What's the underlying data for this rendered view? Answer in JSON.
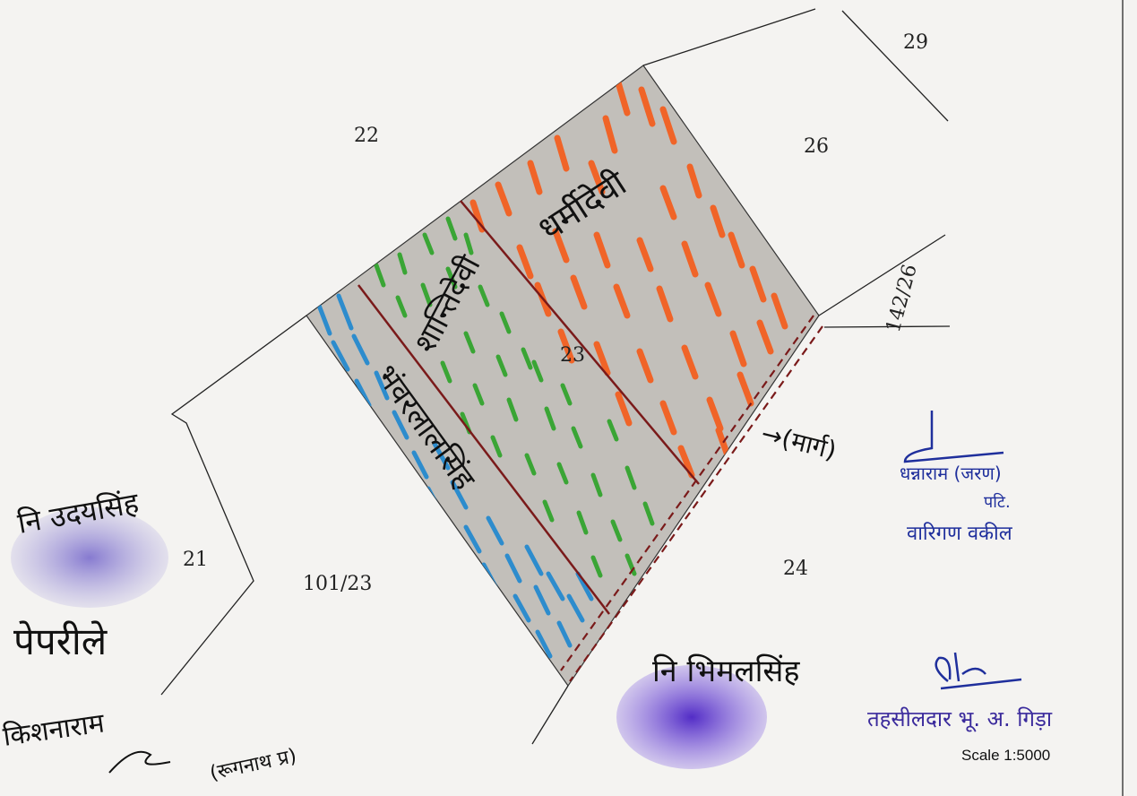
{
  "plot_numbers": {
    "p22": "22",
    "p29": "29",
    "p26": "26",
    "p23": "23",
    "p142_26": "142/26",
    "p21": "21",
    "p101_23": "101/23",
    "p24": "24"
  },
  "owner_labels": {
    "dharmidevi": "धर्मीदेवी",
    "shantidevi": "शान्तिदेवी",
    "bhanwarlal": "भंवरलालसिंह"
  },
  "path_label": "→(मार्ग)",
  "signatures": {
    "udaysingh": "नि उदयसिंह",
    "paprila": "पेपरीले",
    "kishnaram": "किशनाराम",
    "kishnaram_sub": "(रूगनाथ प्र)",
    "bhimalsingh": "नि भिमलसिंह",
    "right_note_1": "धन्नाराम (जरण)",
    "right_note_2": "पटि.",
    "right_note_3": "वारिगण वकील"
  },
  "official": {
    "tehsildar": "तहसीलदार भू. अ. गिड़ा",
    "scale": "Scale 1:5000"
  },
  "colors": {
    "shantidevi_strip": "#3aa535",
    "dharmidevi_strip": "#f06428",
    "bhanwarlal_strip": "#2d8ccd",
    "boundary_dark": "#7a1a1a",
    "stamp_ink": "#3a2a9c"
  }
}
